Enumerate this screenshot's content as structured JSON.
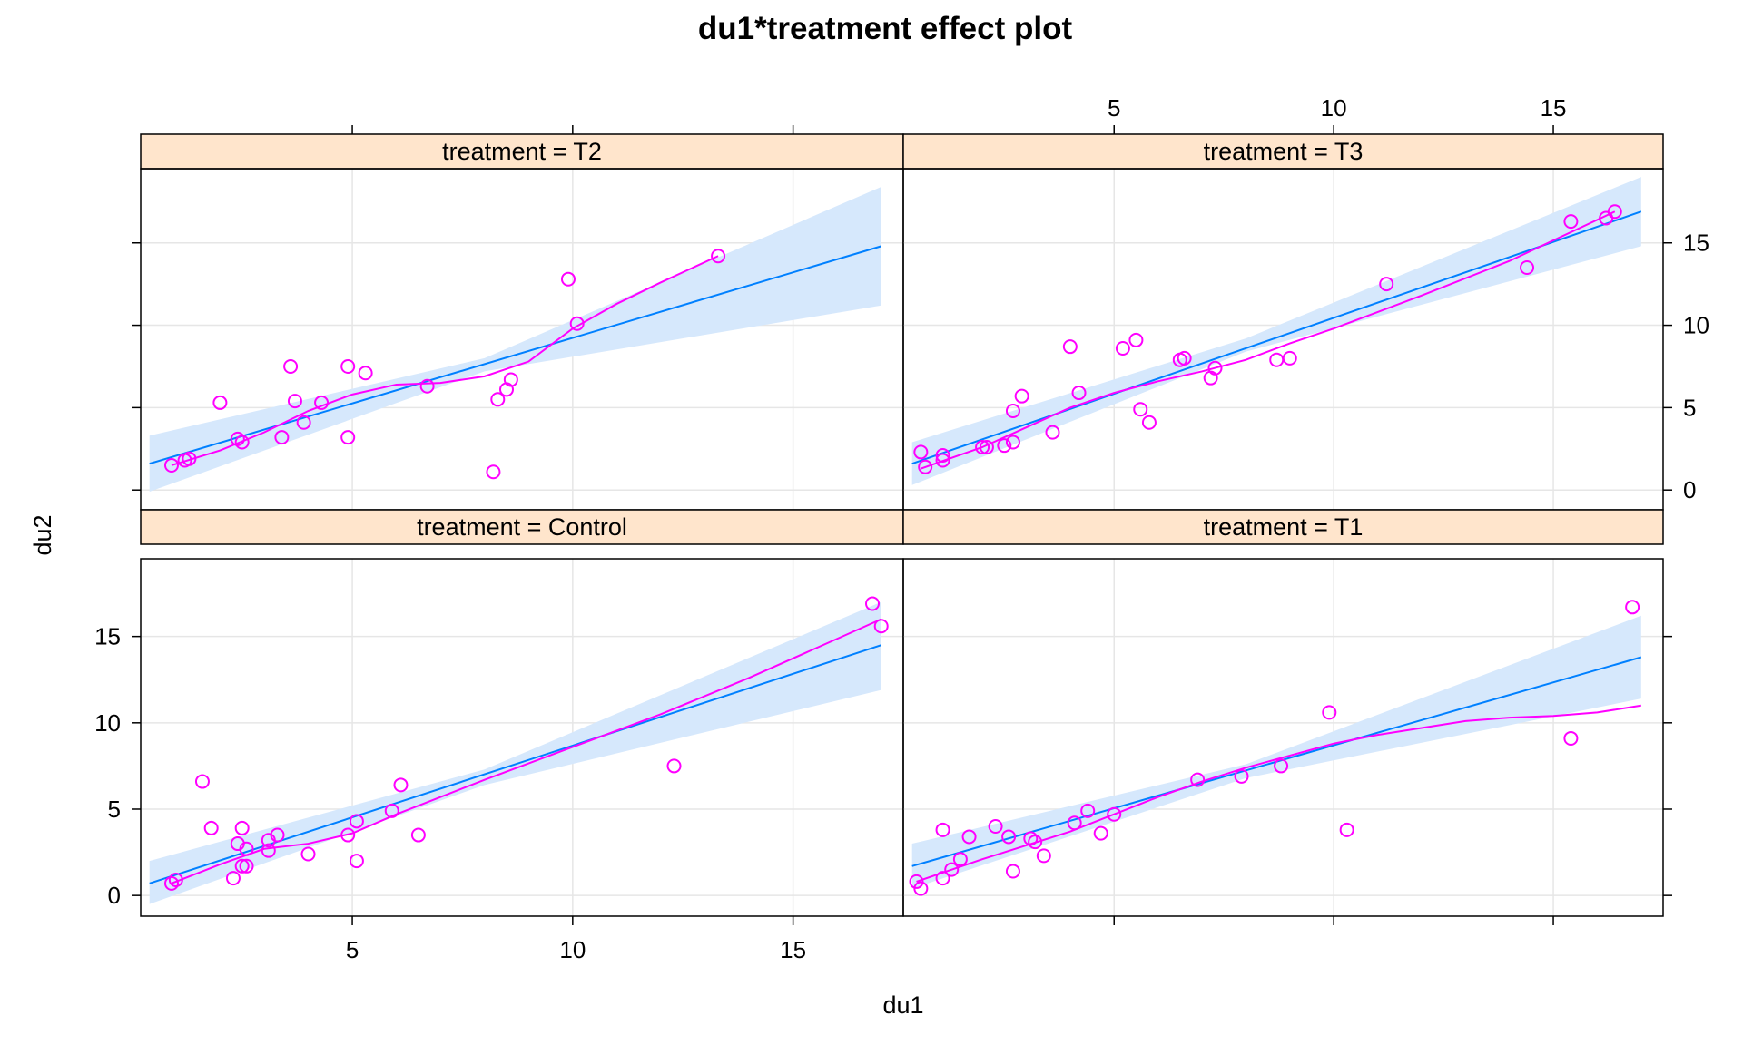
{
  "chart_data": {
    "type": "scatter",
    "title": "du1*treatment effect plot",
    "xlabel": "du1",
    "ylabel": "du2",
    "xlim": [
      0.2,
      17.5
    ],
    "ylim": [
      -1.2,
      19.5
    ],
    "x_ticks": [
      "5",
      "10",
      "15"
    ],
    "y_ticks": [
      "0",
      "5",
      "10",
      "15"
    ],
    "x_tick_values": [
      5,
      10,
      15
    ],
    "y_tick_values": [
      0,
      5,
      10,
      15
    ],
    "grid": true,
    "colors": {
      "points": "#ff00ff",
      "smooth": "#ff00ff",
      "fit": "#0080ff",
      "band": "#d6e8fc",
      "strip": "#ffe5cc",
      "grid": "#e6e6e6",
      "frame": "#000000"
    },
    "panels": [
      {
        "strip": "treatment = T2",
        "position": "top-left",
        "points": [
          [
            0.9,
            1.5
          ],
          [
            1.2,
            1.8
          ],
          [
            1.3,
            1.9
          ],
          [
            2.0,
            5.3
          ],
          [
            2.4,
            3.1
          ],
          [
            2.5,
            2.9
          ],
          [
            3.4,
            3.2
          ],
          [
            3.6,
            7.5
          ],
          [
            3.7,
            5.4
          ],
          [
            3.9,
            4.1
          ],
          [
            4.3,
            5.3
          ],
          [
            4.9,
            7.5
          ],
          [
            4.9,
            3.2
          ],
          [
            5.3,
            7.1
          ],
          [
            6.7,
            6.3
          ],
          [
            8.2,
            1.1
          ],
          [
            8.3,
            5.5
          ],
          [
            8.5,
            6.1
          ],
          [
            8.6,
            6.7
          ],
          [
            9.9,
            12.8
          ],
          [
            10.1,
            10.1
          ],
          [
            13.3,
            14.2
          ]
        ],
        "fit": [
          [
            0.4,
            1.6
          ],
          [
            17.0,
            14.8
          ]
        ],
        "band_lower": [
          [
            0.4,
            -0.1
          ],
          [
            8.0,
            7.2
          ],
          [
            17.0,
            11.2
          ]
        ],
        "band_upper": [
          [
            0.4,
            3.3
          ],
          [
            8.0,
            8.0
          ],
          [
            17.0,
            18.4
          ]
        ],
        "smooth": [
          [
            0.9,
            1.5
          ],
          [
            2.0,
            2.4
          ],
          [
            3.0,
            3.5
          ],
          [
            4.0,
            4.8
          ],
          [
            5.0,
            5.8
          ],
          [
            6.0,
            6.4
          ],
          [
            7.0,
            6.5
          ],
          [
            8.0,
            6.9
          ],
          [
            9.0,
            7.8
          ],
          [
            10.0,
            9.8
          ],
          [
            11.0,
            11.3
          ],
          [
            12.0,
            12.6
          ],
          [
            13.3,
            14.2
          ]
        ]
      },
      {
        "strip": "treatment = T3",
        "position": "top-right",
        "points": [
          [
            0.6,
            2.3
          ],
          [
            0.7,
            1.4
          ],
          [
            1.1,
            2.1
          ],
          [
            1.1,
            1.8
          ],
          [
            2.0,
            2.6
          ],
          [
            2.1,
            2.6
          ],
          [
            2.5,
            2.7
          ],
          [
            2.7,
            2.9
          ],
          [
            2.7,
            4.8
          ],
          [
            2.9,
            5.7
          ],
          [
            3.6,
            3.5
          ],
          [
            4.0,
            8.7
          ],
          [
            4.2,
            5.9
          ],
          [
            5.2,
            8.6
          ],
          [
            5.5,
            9.1
          ],
          [
            5.6,
            4.9
          ],
          [
            5.8,
            4.1
          ],
          [
            6.5,
            7.9
          ],
          [
            6.6,
            8.0
          ],
          [
            7.2,
            6.8
          ],
          [
            7.3,
            7.4
          ],
          [
            8.7,
            7.9
          ],
          [
            9.0,
            8.0
          ],
          [
            11.2,
            12.5
          ],
          [
            14.4,
            13.5
          ],
          [
            15.4,
            16.3
          ],
          [
            16.2,
            16.5
          ],
          [
            16.4,
            16.9
          ]
        ],
        "fit": [
          [
            0.4,
            1.6
          ],
          [
            17.0,
            16.9
          ]
        ],
        "band_lower": [
          [
            0.4,
            0.3
          ],
          [
            8.0,
            8.4
          ],
          [
            17.0,
            14.8
          ]
        ],
        "band_upper": [
          [
            0.4,
            2.9
          ],
          [
            8.0,
            9.2
          ],
          [
            17.0,
            19.0
          ]
        ],
        "smooth": [
          [
            0.6,
            1.3
          ],
          [
            2.0,
            2.6
          ],
          [
            3.0,
            3.8
          ],
          [
            4.0,
            5.0
          ],
          [
            5.0,
            5.9
          ],
          [
            6.0,
            6.6
          ],
          [
            7.0,
            7.2
          ],
          [
            8.0,
            7.9
          ],
          [
            9.0,
            8.9
          ],
          [
            10.0,
            9.8
          ],
          [
            12.0,
            11.8
          ],
          [
            14.0,
            13.9
          ],
          [
            16.4,
            16.9
          ]
        ]
      },
      {
        "strip": "treatment = Control",
        "position": "bottom-left",
        "points": [
          [
            0.9,
            0.7
          ],
          [
            1.0,
            0.9
          ],
          [
            1.6,
            6.6
          ],
          [
            1.8,
            3.9
          ],
          [
            2.3,
            1.0
          ],
          [
            2.4,
            3.0
          ],
          [
            2.5,
            1.7
          ],
          [
            2.5,
            3.9
          ],
          [
            2.6,
            2.7
          ],
          [
            2.6,
            1.7
          ],
          [
            3.1,
            2.6
          ],
          [
            3.1,
            3.2
          ],
          [
            3.3,
            3.5
          ],
          [
            4.0,
            2.4
          ],
          [
            4.9,
            3.5
          ],
          [
            5.1,
            4.3
          ],
          [
            5.1,
            2.0
          ],
          [
            5.9,
            4.9
          ],
          [
            6.1,
            6.4
          ],
          [
            6.5,
            3.5
          ],
          [
            12.3,
            7.5
          ],
          [
            16.8,
            16.9
          ],
          [
            17.0,
            15.6
          ]
        ],
        "fit": [
          [
            0.4,
            0.7
          ],
          [
            17.0,
            14.5
          ]
        ],
        "band_lower": [
          [
            0.4,
            -0.5
          ],
          [
            8.0,
            6.4
          ],
          [
            17.0,
            11.9
          ]
        ],
        "band_upper": [
          [
            0.4,
            2.0
          ],
          [
            8.0,
            7.3
          ],
          [
            17.0,
            17.0
          ]
        ],
        "smooth": [
          [
            0.9,
            0.7
          ],
          [
            2.0,
            1.8
          ],
          [
            3.0,
            2.7
          ],
          [
            4.0,
            3.0
          ],
          [
            5.0,
            3.6
          ],
          [
            6.0,
            4.7
          ],
          [
            7.0,
            5.7
          ],
          [
            8.0,
            6.7
          ],
          [
            10.0,
            8.6
          ],
          [
            12.0,
            10.5
          ],
          [
            14.0,
            12.6
          ],
          [
            17.0,
            16.0
          ]
        ]
      },
      {
        "strip": "treatment = T1",
        "position": "bottom-right",
        "points": [
          [
            0.5,
            0.8
          ],
          [
            0.6,
            0.4
          ],
          [
            1.1,
            3.8
          ],
          [
            1.1,
            1.0
          ],
          [
            1.3,
            1.5
          ],
          [
            1.5,
            2.1
          ],
          [
            1.7,
            3.4
          ],
          [
            2.3,
            4.0
          ],
          [
            2.6,
            3.4
          ],
          [
            2.7,
            1.4
          ],
          [
            3.1,
            3.3
          ],
          [
            3.2,
            3.1
          ],
          [
            3.4,
            2.3
          ],
          [
            4.1,
            4.2
          ],
          [
            4.4,
            4.9
          ],
          [
            4.7,
            3.6
          ],
          [
            5.0,
            4.7
          ],
          [
            6.9,
            6.7
          ],
          [
            7.9,
            6.9
          ],
          [
            8.8,
            7.5
          ],
          [
            9.9,
            10.6
          ],
          [
            10.3,
            3.8
          ],
          [
            15.4,
            9.1
          ],
          [
            16.8,
            16.7
          ]
        ],
        "fit": [
          [
            0.4,
            1.7
          ],
          [
            17.0,
            13.8
          ]
        ],
        "band_lower": [
          [
            0.4,
            0.4
          ],
          [
            8.0,
            6.8
          ],
          [
            17.0,
            11.4
          ]
        ],
        "band_upper": [
          [
            0.4,
            3.0
          ],
          [
            8.0,
            7.6
          ],
          [
            17.0,
            16.2
          ]
        ],
        "smooth": [
          [
            0.5,
            0.8
          ],
          [
            2.0,
            2.1
          ],
          [
            3.0,
            2.9
          ],
          [
            4.0,
            3.7
          ],
          [
            5.0,
            4.7
          ],
          [
            6.0,
            5.7
          ],
          [
            7.0,
            6.6
          ],
          [
            8.0,
            7.4
          ],
          [
            9.0,
            8.1
          ],
          [
            10.0,
            8.8
          ],
          [
            11.0,
            9.3
          ],
          [
            12.0,
            9.7
          ],
          [
            13.0,
            10.1
          ],
          [
            14.0,
            10.3
          ],
          [
            15.0,
            10.4
          ],
          [
            16.0,
            10.6
          ],
          [
            17.0,
            11.0
          ]
        ]
      }
    ]
  }
}
